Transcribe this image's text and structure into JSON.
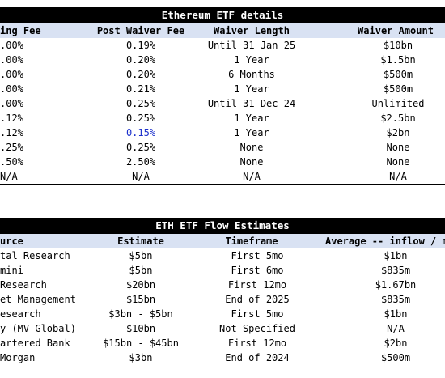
{
  "table1": {
    "title": "Ethereum ETF details",
    "headers": [
      "ing Fee",
      "Post Waiver Fee",
      "Waiver Length",
      "Waiver Amount"
    ],
    "rows": [
      [
        ".00%",
        "0.19%",
        "Until 31 Jan 25",
        "$10bn"
      ],
      [
        ".00%",
        "0.20%",
        "1 Year",
        "$1.5bn"
      ],
      [
        ".00%",
        "0.20%",
        "6 Months",
        "$500m"
      ],
      [
        ".00%",
        "0.21%",
        "1 Year",
        "$500m"
      ],
      [
        ".00%",
        "0.25%",
        "Until 31 Dec 24",
        "Unlimited"
      ],
      [
        ".12%",
        "0.25%",
        "1 Year",
        "$2.5bn"
      ],
      [
        ".12%",
        "0.15%",
        "1 Year",
        "$2bn"
      ],
      [
        ".25%",
        "0.25%",
        "None",
        "None"
      ],
      [
        ".50%",
        "2.50%",
        "None",
        "None"
      ],
      [
        "N/A",
        "N/A",
        "N/A",
        "N/A"
      ]
    ],
    "highlight_color": "#1a2fcc"
  },
  "table2": {
    "title": "ETH ETF Flow Estimates",
    "headers": [
      "urce",
      "Estimate",
      "Timeframe",
      "Average -- inflow / mo"
    ],
    "rows": [
      [
        "tal Research",
        "$5bn",
        "First 5mo",
        "$1bn"
      ],
      [
        "mini",
        "$5bn",
        "First 6mo",
        "$835m"
      ],
      [
        " Research",
        "$20bn",
        "First 12mo",
        "$1.67bn"
      ],
      [
        "et Management",
        "$15bn",
        "End of 2025",
        "$835m"
      ],
      [
        "esearch",
        "$3bn - $5bn",
        "First 5mo",
        "$1bn"
      ],
      [
        "y (MV Global)",
        "$10bn",
        "Not Specified",
        "N/A"
      ],
      [
        "artered Bank",
        "$15bn - $45bn",
        "First 12mo",
        "$2bn"
      ],
      [
        "Morgan",
        "$3bn",
        "End of 2024",
        "$500m"
      ]
    ]
  },
  "colors": {
    "header_bg": "#d9e2f3",
    "title_bg": "#000000"
  }
}
